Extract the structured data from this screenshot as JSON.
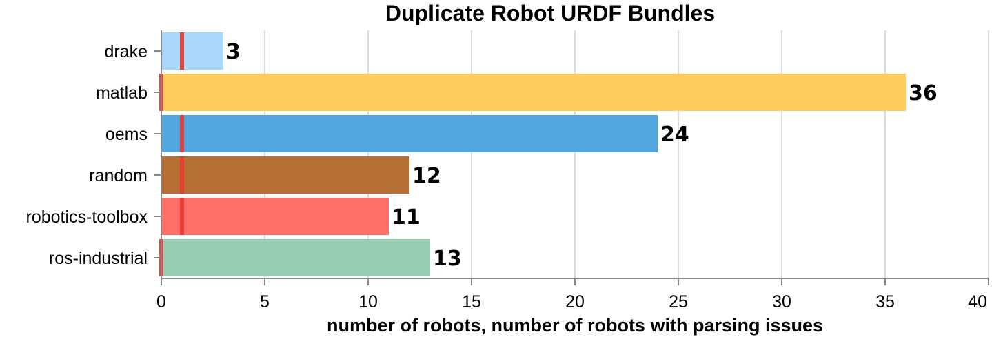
{
  "chart_data": {
    "type": "bar",
    "orientation": "horizontal",
    "title": "Duplicate Robot URDF Bundles",
    "xlabel": "number of robots, number of robots with parsing issues",
    "ylabel": "",
    "xlim": [
      0,
      40
    ],
    "xticks": [
      0,
      5,
      10,
      15,
      20,
      25,
      30,
      35,
      40
    ],
    "grid": true,
    "categories": [
      "drake",
      "matlab",
      "oems",
      "random",
      "robotics-toolbox",
      "ros-industrial"
    ],
    "series": [
      {
        "values": [
          3,
          36,
          24,
          12,
          11,
          13
        ],
        "colors": [
          "#aad8fa",
          "#fecb5c",
          "#52a7de",
          "#b77034",
          "#ff6e67",
          "#97cdb3"
        ]
      },
      {
        "values": [
          1,
          0,
          1,
          1,
          1,
          0
        ],
        "color": "#e8352c",
        "mark": "rule"
      }
    ],
    "data_labels": [
      "3",
      "36",
      "24",
      "12",
      "11",
      "13"
    ]
  }
}
